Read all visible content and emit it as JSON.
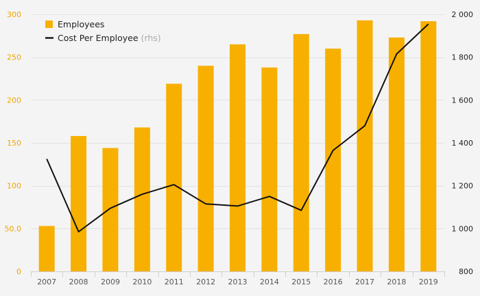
{
  "chart_data": {
    "type": "bar",
    "categories": [
      "2007",
      "2008",
      "2009",
      "2010",
      "2011",
      "2012",
      "2013",
      "2014",
      "2015",
      "2016",
      "2017",
      "2018",
      "2019"
    ],
    "series": [
      {
        "name": "Employees",
        "type": "bar",
        "axis": "left",
        "values": [
          53,
          158,
          144,
          168,
          219,
          240,
          265,
          238,
          277,
          260,
          293,
          273,
          292
        ]
      },
      {
        "name": "Cost Per Employee",
        "name_suffix": "(rhs)",
        "type": "line",
        "axis": "right",
        "values": [
          1325,
          985,
          1095,
          1160,
          1205,
          1115,
          1105,
          1150,
          1085,
          1365,
          1480,
          1815,
          1955
        ]
      }
    ],
    "y_left": {
      "ylim": [
        0,
        300
      ],
      "ticks": [
        "0",
        "50.0",
        "100",
        "150",
        "200",
        "250",
        "300"
      ]
    },
    "y_right": {
      "ylim": [
        800,
        2000
      ],
      "ticks": [
        "800",
        "1 000",
        "1 200",
        "1 400",
        "1 600",
        "1 800",
        "2 000"
      ]
    },
    "grid": true,
    "legend_position": "top-left",
    "colors": {
      "bar": "#f7b000",
      "line": "#111111",
      "left_tick": "#f0a500",
      "grid": "#e2e2e2"
    }
  }
}
